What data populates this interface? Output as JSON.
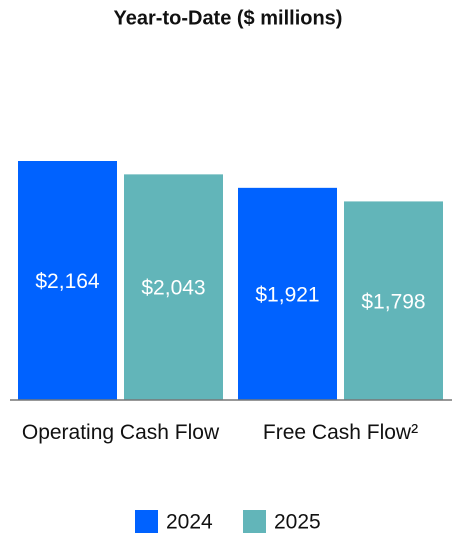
{
  "chart_data": {
    "type": "bar",
    "title": "Year-to-Date ($ millions)",
    "categories": [
      "Operating Cash Flow",
      "Free Cash Flow²"
    ],
    "series": [
      {
        "name": "2024",
        "color": "#0062ff",
        "values": [
          2164,
          1921
        ],
        "value_labels": [
          "$2,164",
          "$1,921"
        ]
      },
      {
        "name": "2025",
        "color": "#62b5b9",
        "values": [
          2043,
          1798
        ],
        "value_labels": [
          "$2,043",
          "$1,798"
        ]
      }
    ]
  }
}
